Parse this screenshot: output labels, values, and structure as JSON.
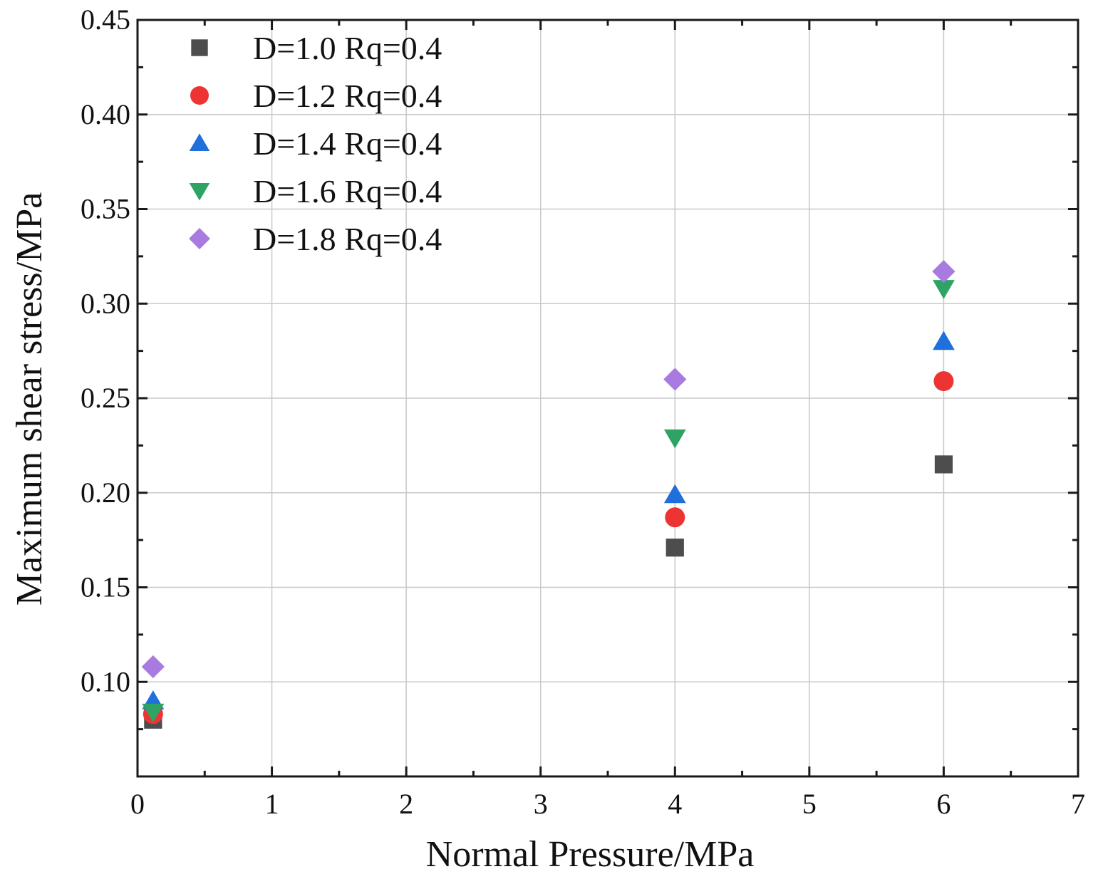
{
  "chart_data": {
    "type": "scatter",
    "title": "",
    "xlabel": "Normal Pressure/MPa",
    "ylabel": "Maximum shear stress/MPa",
    "xlim": [
      0,
      7
    ],
    "ylim": [
      0.05,
      0.45
    ],
    "xticks": [
      0,
      1,
      2,
      3,
      4,
      5,
      6,
      7
    ],
    "xtick_labels": [
      "0",
      "1",
      "2",
      "3",
      "4",
      "5",
      "6",
      "7"
    ],
    "yticks": [
      0.1,
      0.15,
      0.2,
      0.25,
      0.3,
      0.35,
      0.4,
      0.45
    ],
    "ytick_labels": [
      "0.10",
      "0.15",
      "0.20",
      "0.25",
      "0.30",
      "0.35",
      "0.40",
      "0.45"
    ],
    "grid": true,
    "legend_position": "top-left",
    "series": [
      {
        "name": "D=1.0 Rq=0.4",
        "marker": "square",
        "color": "#4d4d4d",
        "x": [
          0.1,
          4,
          6
        ],
        "y": [
          0.08,
          0.171,
          0.215
        ]
      },
      {
        "name": "D=1.2 Rq=0.4",
        "marker": "circle",
        "color": "#ee3333",
        "x": [
          0.1,
          4,
          6
        ],
        "y": [
          0.083,
          0.187,
          0.259
        ]
      },
      {
        "name": "D=1.4 Rq=0.4",
        "marker": "triangle-up",
        "color": "#1f6fdc",
        "x": [
          0.1,
          4,
          6
        ],
        "y": [
          0.09,
          0.199,
          0.28
        ]
      },
      {
        "name": "D=1.6 Rq=0.4",
        "marker": "triangle-down",
        "color": "#2ea364",
        "x": [
          0.1,
          4,
          6
        ],
        "y": [
          0.084,
          0.229,
          0.308
        ]
      },
      {
        "name": "D=1.8 Rq=0.4",
        "marker": "diamond",
        "color": "#a97be0",
        "x": [
          0.1,
          4,
          6
        ],
        "y": [
          0.108,
          0.26,
          0.317
        ]
      }
    ]
  }
}
